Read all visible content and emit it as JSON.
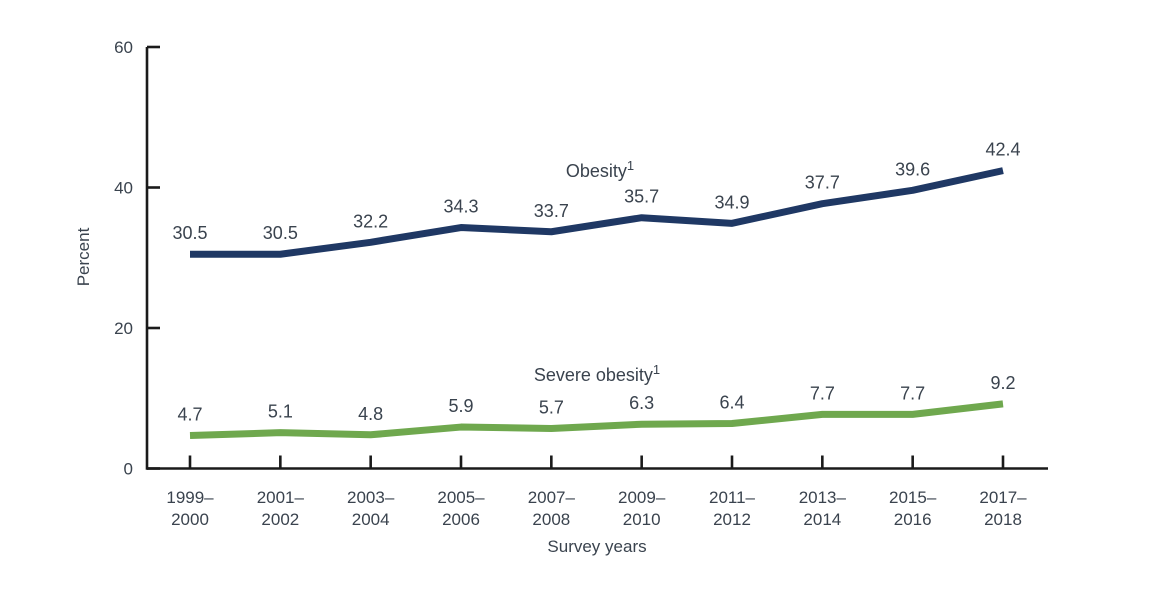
{
  "chart_data": {
    "type": "line",
    "title": "",
    "xlabel": "Survey years",
    "ylabel": "Percent",
    "ylim": [
      0,
      60
    ],
    "yticks": [
      0,
      20,
      40,
      60
    ],
    "grid": false,
    "legend_position": "inline labels above each line",
    "categories": [
      "1999–2000",
      "2001–2002",
      "2003–2004",
      "2005–2006",
      "2007–2008",
      "2009–2010",
      "2011–2012",
      "2013–2014",
      "2015–2016",
      "2017–2018"
    ],
    "series": [
      {
        "name": "Obesity",
        "superscript": "1",
        "color": "#1f3864",
        "values": [
          30.5,
          30.5,
          32.2,
          34.3,
          33.7,
          35.7,
          34.9,
          37.7,
          39.6,
          42.4
        ]
      },
      {
        "name": "Severe obesity",
        "superscript": "1",
        "color": "#6fa84e",
        "values": [
          4.7,
          5.1,
          4.8,
          5.9,
          5.7,
          6.3,
          6.4,
          7.7,
          7.7,
          9.2
        ]
      }
    ]
  }
}
